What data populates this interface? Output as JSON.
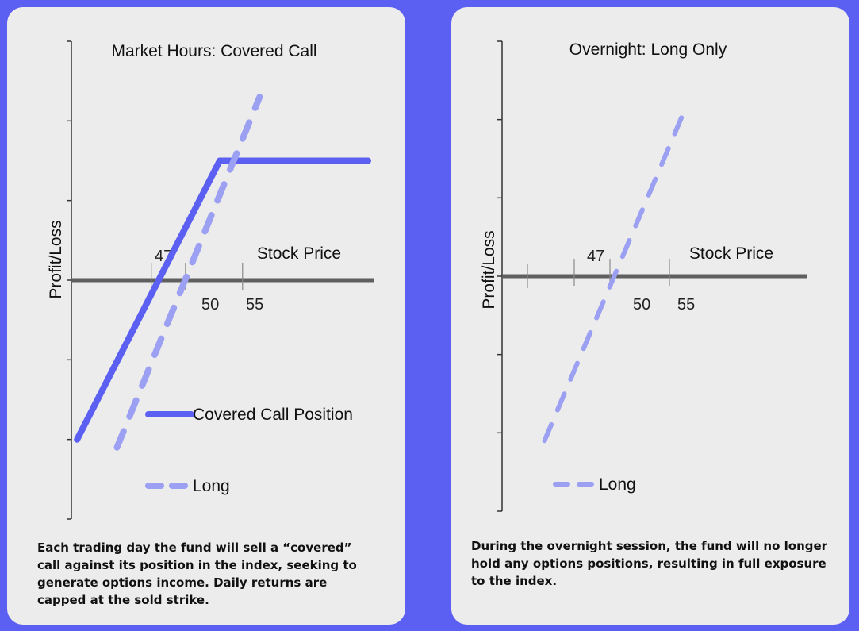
{
  "colors": {
    "background": "#5b5ff2",
    "panel": "#ececec",
    "covered_call": "#5b5ff2",
    "long": "#9ca0f2",
    "axis": "#5f5f5f",
    "text": "#111111"
  },
  "left_panel": {
    "caption": "Each trading day the fund will sell a “covered” call against its position in the index, seeking to generate options income. Daily returns are capped at the sold strike."
  },
  "right_panel": {
    "caption": "During the overnight session, the fund will no longer hold any options positions, resulting in full exposure to the index."
  },
  "chart_data": [
    {
      "type": "line",
      "title": "Market Hours: Covered Call",
      "xlabel": "Stock Price",
      "ylabel": "Profit/Loss",
      "x_ticks": [
        "47",
        "50",
        "55"
      ],
      "xlim": [
        40,
        66
      ],
      "ylim": [
        -15,
        15
      ],
      "grid": false,
      "legend_position": "bottom",
      "series": [
        {
          "name": "Covered Call Position",
          "style": "solid",
          "color": "#5b5ff2",
          "x": [
            40.5,
            53,
            66
          ],
          "y": [
            -10,
            7.5,
            7.5
          ]
        },
        {
          "name": "Long",
          "style": "dashed",
          "color": "#9ca0f2",
          "x": [
            44,
            56.5
          ],
          "y": [
            -10.5,
            11.5
          ]
        }
      ]
    },
    {
      "type": "line",
      "title": "Overnight: Long Only",
      "xlabel": "Stock Price",
      "ylabel": "Profit/Loss",
      "x_ticks": [
        "47",
        "50",
        "55"
      ],
      "xlim": [
        41,
        66
      ],
      "ylim": [
        -15,
        15
      ],
      "grid": false,
      "legend_position": "bottom",
      "series": [
        {
          "name": "Long",
          "style": "dashed",
          "color": "#9ca0f2",
          "x": [
            44.5,
            56.5
          ],
          "y": [
            -10.5,
            11
          ]
        }
      ]
    }
  ]
}
